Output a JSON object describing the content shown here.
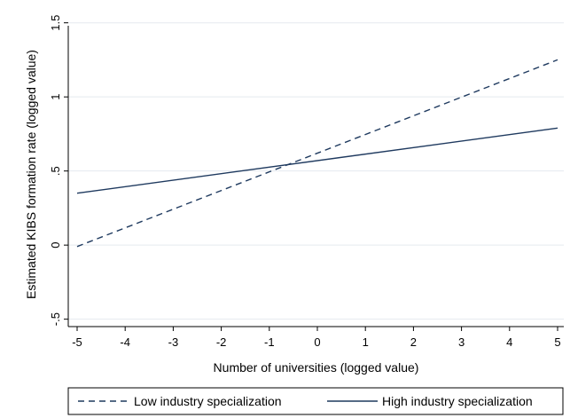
{
  "chart_data": {
    "type": "line",
    "title": "",
    "xlabel": "Number of universities (logged value)",
    "ylabel": "Estimated KIBS formation rate (logged value)",
    "xlim": [
      -5,
      5
    ],
    "ylim": [
      -0.55,
      1.6
    ],
    "x_ticks": [
      -5,
      -4,
      -3,
      -2,
      -1,
      0,
      1,
      2,
      3,
      4,
      5
    ],
    "x_tick_labels": [
      "-5",
      "-4",
      "-3",
      "-2",
      "-1",
      "0",
      "1",
      "2",
      "3",
      "4",
      "5"
    ],
    "y_ticks": [
      -0.5,
      0,
      0.5,
      1,
      1.5
    ],
    "y_tick_labels": [
      "-.5",
      "0",
      ".5",
      "1",
      "1.5"
    ],
    "grid": "horizontal",
    "legend_position": "bottom",
    "series": [
      {
        "name": "Low industry specialization",
        "x": [
          -5,
          5
        ],
        "values": [
          -0.01,
          1.25
        ],
        "style": "dashed",
        "color": "#1f3a5f"
      },
      {
        "name": "High industry specialization",
        "x": [
          -5,
          5
        ],
        "values": [
          0.35,
          0.79
        ],
        "style": "solid",
        "color": "#1f3a5f"
      }
    ],
    "colors": {
      "grid": "#e5eaef",
      "axis": "#000000",
      "legend_border": "#000000"
    }
  }
}
